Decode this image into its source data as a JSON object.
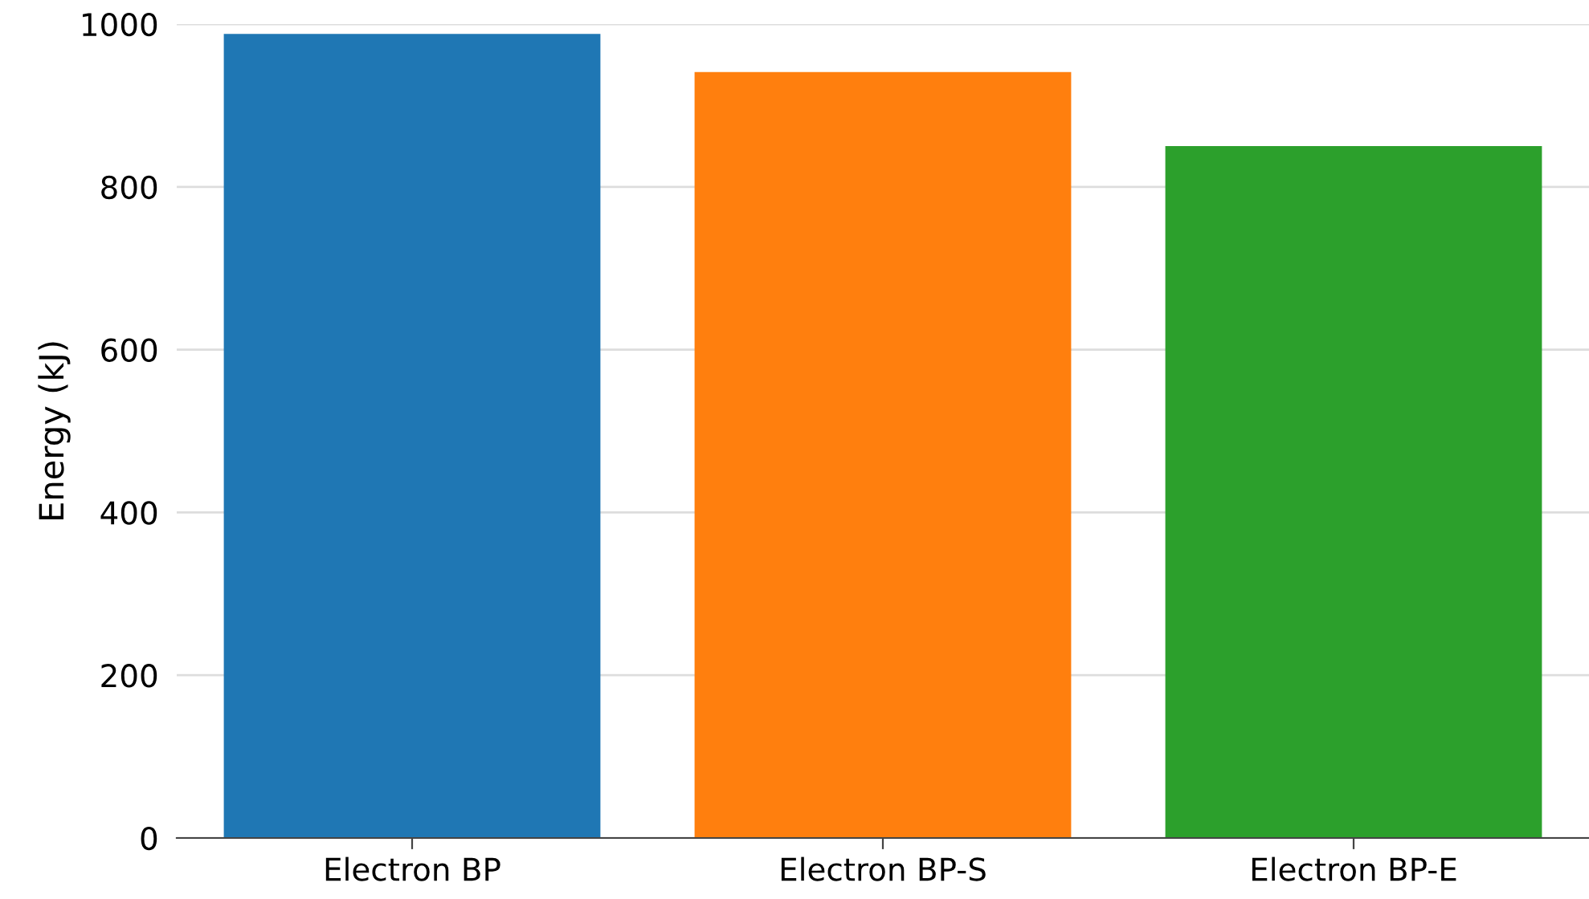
{
  "chart_data": {
    "type": "bar",
    "ylabel": "Energy (kJ)",
    "categories": [
      "Electron BP",
      "Electron BP-S",
      "Electron BP-E"
    ],
    "values": [
      988,
      941,
      850
    ],
    "colors": [
      "#1f77b4",
      "#ff7f0e",
      "#2ca02c"
    ],
    "ylim": [
      0,
      1000
    ],
    "yticks": [
      0,
      200,
      400,
      600,
      800,
      1000
    ],
    "grid": "y"
  }
}
